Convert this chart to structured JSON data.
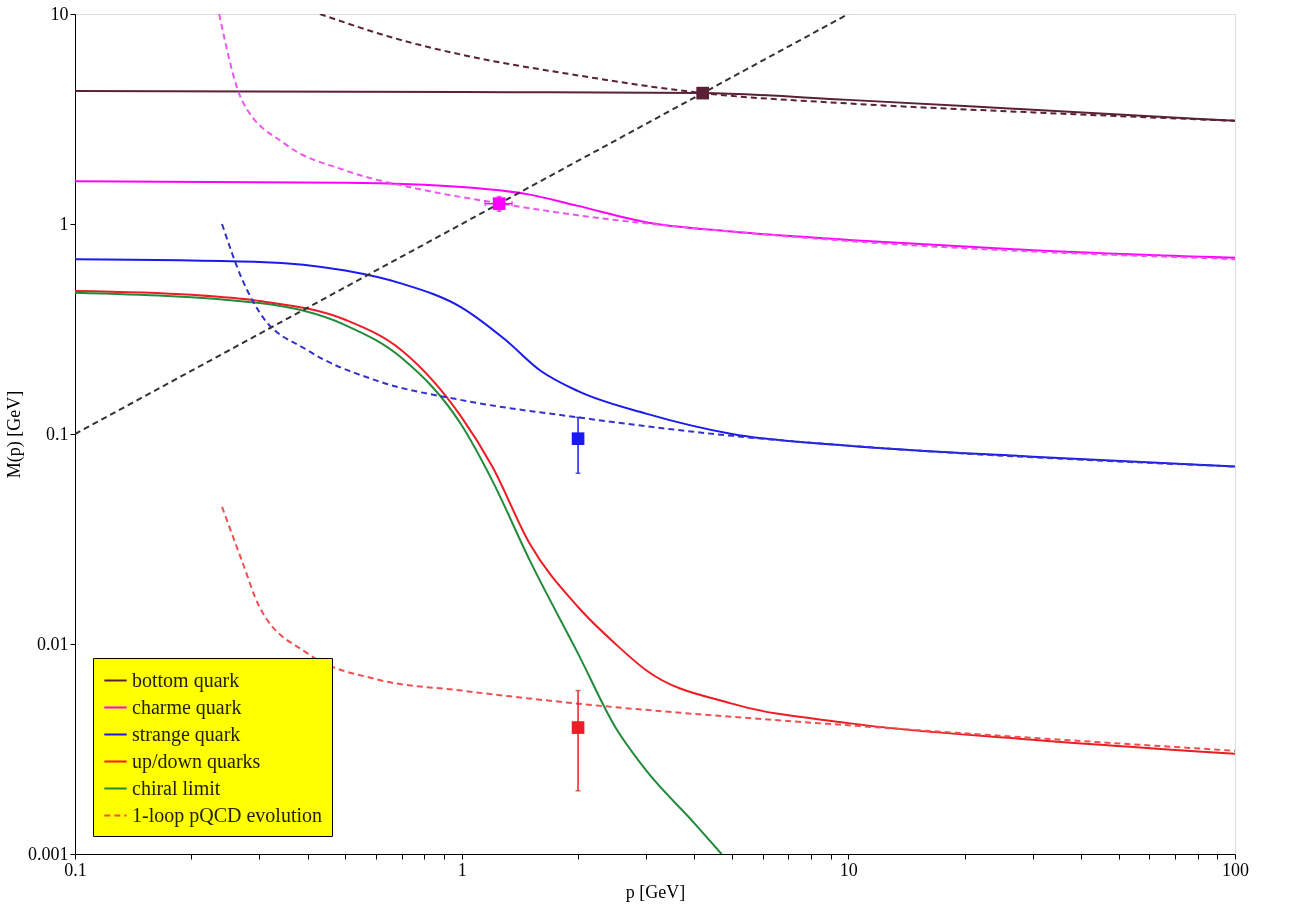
{
  "chart_data": {
    "type": "line",
    "xlabel": "p  [GeV]",
    "ylabel": "M(p)  [GeV]",
    "log": "xy",
    "grid": false,
    "legend": "bottom left",
    "line_style": "solid",
    "xlim": [
      0.1,
      100
    ],
    "ylim": [
      0.001,
      10
    ],
    "xticks": [
      0.1,
      {
        "value": 0.2,
        "label": null
      },
      {
        "value": 0.3,
        "label": null
      },
      {
        "value": 0.4,
        "label": null
      },
      {
        "value": 0.5,
        "label": null
      },
      {
        "value": 0.6,
        "label": null
      },
      {
        "value": 0.7,
        "label": null
      },
      {
        "value": 0.8,
        "label": null
      },
      {
        "value": 0.9,
        "label": null
      },
      1,
      {
        "value": 2,
        "label": null
      },
      {
        "value": 3,
        "label": null
      },
      {
        "value": 4,
        "label": null
      },
      {
        "value": 5,
        "label": null
      },
      {
        "value": 6,
        "label": null
      },
      {
        "value": 7,
        "label": null
      },
      {
        "value": 8,
        "label": null
      },
      {
        "value": 9,
        "label": null
      },
      10,
      {
        "value": 20,
        "label": null
      },
      {
        "value": 30,
        "label": null
      },
      {
        "value": 40,
        "label": null
      },
      {
        "value": 50,
        "label": null
      },
      {
        "value": 60,
        "label": null
      },
      {
        "value": 70,
        "label": null
      },
      {
        "value": 80,
        "label": null
      },
      {
        "value": 90,
        "label": null
      },
      100
    ],
    "yticks": [
      0.001,
      0.01,
      0.1,
      1,
      10
    ],
    "series": [
      {
        "name": "bottom quark",
        "color": "#5a2035",
        "x": [
          0.1,
          1,
          4.2,
          10,
          30,
          100
        ],
        "values": [
          4.3,
          4.25,
          4.2,
          3.9,
          3.5,
          3.1
        ]
      },
      {
        "name": "charme quark",
        "color": "#ff00ff",
        "x": [
          0.1,
          0.5,
          1,
          1.5,
          2,
          3,
          5,
          10,
          30,
          100
        ],
        "values": [
          1.6,
          1.57,
          1.5,
          1.38,
          1.22,
          1.02,
          0.92,
          0.84,
          0.75,
          0.69
        ]
      },
      {
        "name": "strange quark",
        "color": "#1a1aee",
        "x": [
          0.1,
          0.3,
          0.5,
          0.7,
          1,
          1.3,
          1.6,
          2,
          3,
          5,
          10,
          30,
          100
        ],
        "values": [
          0.68,
          0.66,
          0.6,
          0.52,
          0.4,
          0.28,
          0.2,
          0.16,
          0.125,
          0.1,
          0.088,
          0.078,
          0.07
        ]
      },
      {
        "name": "up/down quarks",
        "color": "#ee1c24",
        "x": [
          0.1,
          0.2,
          0.3,
          0.5,
          0.7,
          1,
          1.2,
          1.5,
          2,
          2.5,
          3,
          5,
          10,
          30,
          100
        ],
        "values": [
          0.48,
          0.46,
          0.43,
          0.35,
          0.25,
          0.12,
          0.07,
          0.03,
          0.015,
          0.01,
          0.0075,
          0.0052,
          0.0042,
          0.0035,
          0.003
        ]
      },
      {
        "name": "chiral limit",
        "color": "#228b3a",
        "x": [
          0.1,
          0.3,
          0.5,
          0.7,
          1,
          1.2,
          1.5,
          2,
          2.5,
          3,
          4,
          4.7
        ],
        "values": [
          0.47,
          0.42,
          0.33,
          0.23,
          0.11,
          0.06,
          0.025,
          0.009,
          0.004,
          0.0025,
          0.0014,
          0.001
        ]
      },
      {
        "name": "1-loop pQCD evolution",
        "color": "#ee5050",
        "line_style": "dashed",
        "x": [
          0.24,
          0.27,
          0.3,
          0.4,
          0.6,
          1,
          2,
          5,
          10,
          100
        ],
        "values": [
          0.045,
          0.025,
          0.015,
          0.009,
          0.0068,
          0.006,
          0.0052,
          0.0045,
          0.0041,
          0.0031
        ]
      },
      {
        "color": "#5a2035",
        "line_style": "dashed",
        "x": [
          0.43,
          0.7,
          1,
          2,
          4.2,
          10,
          30,
          100
        ],
        "values": [
          10,
          7.5,
          6.4,
          5.1,
          4.2,
          3.75,
          3.4,
          3.1
        ]
      },
      {
        "color": "#ee55ee",
        "line_style": "dashed",
        "x": [
          0.236,
          0.27,
          0.35,
          0.5,
          0.8,
          1.2,
          2,
          5,
          10,
          100
        ],
        "values": [
          10,
          3.9,
          2.4,
          1.8,
          1.45,
          1.27,
          1.1,
          0.92,
          0.83,
          0.68
        ]
      },
      {
        "color": "#3333cc",
        "line_style": "dashed",
        "x": [
          0.24,
          0.27,
          0.3,
          0.4,
          0.6,
          1,
          2,
          5,
          10,
          100
        ],
        "values": [
          1.0,
          0.55,
          0.38,
          0.25,
          0.18,
          0.145,
          0.12,
          0.098,
          0.088,
          0.07
        ]
      },
      {
        "color": "#333333",
        "line_style": "dashed",
        "x": [
          0.1,
          10
        ],
        "values": [
          0.1,
          10
        ]
      },
      {
        "type": "scatter",
        "marker": "square",
        "color": "#5a2035",
        "x": [
          4.2
        ],
        "values": [
          4.2
        ],
        "errors": [
          [
            4.0,
            4.4
          ]
        ]
      },
      {
        "type": "scatter",
        "marker": "square",
        "color": "#ff00ff",
        "x": [
          1.25
        ],
        "values": [
          1.25
        ],
        "errors": [
          [
            1.15,
            1.35
          ]
        ],
        "xerrors": [
          [
            1.15,
            1.35
          ]
        ]
      },
      {
        "type": "scatter",
        "marker": "square",
        "color": "#1a1aee",
        "x": [
          2
        ],
        "values": [
          0.095
        ],
        "errors": [
          [
            0.065,
            0.12
          ]
        ]
      },
      {
        "type": "scatter",
        "marker": "square",
        "color": "#ee1c24",
        "x": [
          2
        ],
        "values": [
          0.004
        ],
        "errors": [
          [
            0.002,
            0.006
          ]
        ]
      }
    ]
  }
}
